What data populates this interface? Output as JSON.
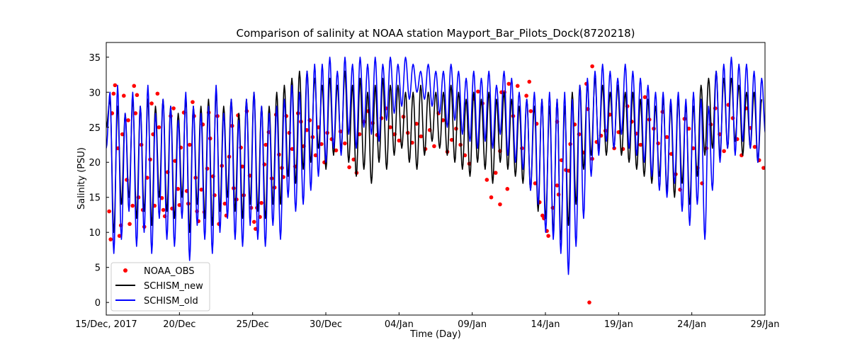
{
  "chart_data": {
    "type": "line",
    "title": "Comparison of salinity at NOAA station Mayport_Bar_Pilots_Dock(8720218)",
    "xlabel": "Time (Day)",
    "ylabel": "Salinity (PSU)",
    "xlim_days": [
      0,
      45
    ],
    "ylim": [
      -1.8,
      37.1
    ],
    "x_ticks": [
      {
        "day": 0,
        "label": "15/Dec, 2017"
      },
      {
        "day": 5,
        "label": "20/Dec"
      },
      {
        "day": 10,
        "label": "25/Dec"
      },
      {
        "day": 15,
        "label": "30/Dec"
      },
      {
        "day": 20,
        "label": "04/Jan"
      },
      {
        "day": 25,
        "label": "09/Jan"
      },
      {
        "day": 30,
        "label": "14/Jan"
      },
      {
        "day": 35,
        "label": "19/Jan"
      },
      {
        "day": 40,
        "label": "24/Jan"
      },
      {
        "day": 45,
        "label": "29/Jan"
      }
    ],
    "y_ticks": [
      0,
      5,
      10,
      15,
      20,
      25,
      30,
      35
    ],
    "grid": false,
    "legend": {
      "placement": "lower-left",
      "entries": [
        {
          "label": "NOAA_OBS",
          "marker": "dot",
          "color": "#ff0000"
        },
        {
          "label": "SCHISM_new",
          "marker": "line",
          "color": "#000000"
        },
        {
          "label": "SCHISM_old",
          "marker": "line",
          "color": "#0000ff"
        }
      ]
    },
    "series": [
      {
        "name": "SCHISM_old",
        "color": "#0000ff",
        "x_step_days": 0.2588,
        "extremes": [
          22,
          30,
          7,
          31,
          9,
          27,
          13,
          30,
          8,
          28,
          10,
          31,
          7,
          27,
          12,
          29,
          9,
          28,
          8,
          26,
          12,
          30,
          6,
          28,
          11,
          27,
          9,
          28,
          7,
          31,
          10,
          27,
          12,
          29,
          9,
          26,
          8,
          29,
          11,
          30,
          9,
          28,
          8,
          27,
          11,
          28,
          9,
          29,
          15,
          31,
          13,
          30,
          14,
          33,
          16,
          34,
          18,
          34,
          20,
          35,
          22,
          33,
          21,
          35,
          24,
          34,
          22,
          35,
          25,
          34,
          24,
          35,
          23,
          34,
          26,
          35,
          27,
          34,
          28,
          35,
          29,
          34,
          30,
          33,
          29,
          34,
          28,
          33,
          27,
          33,
          25,
          34,
          26,
          33,
          24,
          32,
          23,
          33,
          22,
          32,
          23,
          33,
          22,
          31,
          24,
          33,
          21,
          32,
          20,
          30,
          19,
          29,
          16,
          30,
          14,
          29,
          10,
          30,
          9,
          29,
          7,
          30,
          4,
          29,
          8,
          31,
          12,
          32,
          18,
          33,
          21,
          34,
          23,
          33,
          22,
          32,
          24,
          34,
          22,
          33,
          21,
          32,
          20,
          31,
          18,
          30,
          16,
          30,
          15,
          29,
          17,
          30,
          13,
          29,
          11,
          30,
          14,
          29,
          9,
          28,
          16,
          33,
          20,
          34,
          22,
          35,
          21,
          34,
          23,
          34,
          22,
          33,
          20,
          32,
          24,
          31,
          21,
          30
        ]
      },
      {
        "name": "SCHISM_new",
        "color": "#000000",
        "x_step_days": 0.2588,
        "extremes": [
          25,
          29,
          10,
          28,
          14,
          27,
          15,
          29,
          12,
          28,
          13,
          29,
          11,
          28,
          15,
          29,
          13,
          28,
          12,
          27,
          15,
          29,
          10,
          28,
          14,
          28,
          12,
          29,
          11,
          30,
          13,
          28,
          15,
          29,
          13,
          27,
          12,
          29,
          14,
          30,
          13,
          28,
          12,
          28,
          14,
          30,
          14,
          31,
          18,
          32,
          17,
          33,
          19,
          33,
          20,
          32,
          22,
          31,
          19,
          32,
          21,
          31,
          22,
          33,
          20,
          31,
          18,
          32,
          19,
          30,
          17,
          31,
          20,
          32,
          19,
          31,
          21,
          31,
          22,
          30,
          20,
          30,
          19,
          31,
          21,
          30,
          23,
          30,
          22,
          30,
          21,
          31,
          20,
          30,
          19,
          29,
          18,
          30,
          20,
          29,
          19,
          30,
          17,
          29,
          20,
          30,
          19,
          29,
          18,
          28,
          17,
          29,
          16,
          28,
          13,
          29,
          12,
          28,
          10,
          29,
          9,
          28,
          11,
          30,
          14,
          31,
          19,
          31,
          21,
          32,
          22,
          31,
          21,
          30,
          22,
          31,
          21,
          30,
          20,
          30,
          19,
          29,
          18,
          29,
          17,
          28,
          18,
          29,
          16,
          28,
          15,
          29,
          17,
          28,
          14,
          28,
          18,
          31,
          21,
          32,
          22,
          33,
          21,
          32,
          22,
          32,
          23,
          31,
          21,
          30,
          22,
          30,
          20,
          29
        ]
      }
    ],
    "observations": {
      "name": "NOAA_OBS",
      "color": "#ff0000",
      "points": [
        [
          0.2,
          13
        ],
        [
          0.3,
          9
        ],
        [
          0.4,
          27
        ],
        [
          0.5,
          29.8
        ],
        [
          0.6,
          31
        ],
        [
          0.8,
          22
        ],
        [
          0.9,
          9.5
        ],
        [
          1.0,
          11
        ],
        [
          1.1,
          24
        ],
        [
          1.2,
          29.5
        ],
        [
          1.4,
          17.5
        ],
        [
          1.5,
          26
        ],
        [
          1.6,
          11.2
        ],
        [
          1.8,
          13.8
        ],
        [
          1.9,
          30.9
        ],
        [
          2.0,
          27
        ],
        [
          2.1,
          29.6
        ],
        [
          2.2,
          15
        ],
        [
          2.4,
          22.5
        ],
        [
          2.5,
          13.2
        ],
        [
          2.6,
          10.8
        ],
        [
          2.8,
          17.8
        ],
        [
          3.0,
          20.4
        ],
        [
          3.1,
          28.4
        ],
        [
          3.2,
          24
        ],
        [
          3.3,
          13.8
        ],
        [
          3.5,
          29.8
        ],
        [
          3.6,
          25
        ],
        [
          3.8,
          14.9
        ],
        [
          3.9,
          13.2
        ],
        [
          4.0,
          12.3
        ],
        [
          4.2,
          18.6
        ],
        [
          4.4,
          26.6
        ],
        [
          4.5,
          13.4
        ],
        [
          4.6,
          27.7
        ],
        [
          4.7,
          20.2
        ],
        [
          4.9,
          16.2
        ],
        [
          5.0,
          13.9
        ],
        [
          5.1,
          22.1
        ],
        [
          5.3,
          27.1
        ],
        [
          5.5,
          15.9
        ],
        [
          5.6,
          14.1
        ],
        [
          5.7,
          22.5
        ],
        [
          5.9,
          28.6
        ],
        [
          6.0,
          26.6
        ],
        [
          6.1,
          17.8
        ],
        [
          6.2,
          13
        ],
        [
          6.3,
          11.6
        ],
        [
          6.5,
          16.1
        ],
        [
          6.6,
          25.4
        ],
        [
          6.7,
          12.9
        ],
        [
          6.9,
          19.1
        ],
        [
          7.0,
          27.1
        ],
        [
          7.1,
          23.4
        ],
        [
          7.3,
          18
        ],
        [
          7.4,
          15.3
        ],
        [
          7.6,
          26.6
        ],
        [
          7.7,
          11.2
        ],
        [
          7.9,
          19.5
        ],
        [
          8.1,
          14.1
        ],
        [
          8.2,
          12.4
        ],
        [
          8.4,
          20.8
        ],
        [
          8.6,
          25.2
        ],
        [
          8.7,
          16.3
        ],
        [
          8.9,
          14.7
        ],
        [
          9.0,
          26.7
        ],
        [
          9.2,
          22.1
        ],
        [
          9.3,
          19.4
        ],
        [
          9.4,
          15.3
        ],
        [
          9.6,
          27.3
        ],
        [
          9.8,
          18.1
        ],
        [
          9.9,
          13.5
        ],
        [
          10.1,
          11.5
        ],
        [
          10.2,
          10.5
        ],
        [
          10.3,
          13.5
        ],
        [
          10.5,
          12.2
        ],
        [
          10.6,
          14.2
        ],
        [
          10.8,
          19.7
        ],
        [
          10.9,
          22.5
        ],
        [
          11.1,
          24.3
        ],
        [
          11.3,
          17.7
        ],
        [
          11.5,
          16.4
        ],
        [
          11.6,
          26.8
        ],
        [
          11.8,
          21.1
        ],
        [
          12.0,
          19.2
        ],
        [
          12.1,
          17.9
        ],
        [
          12.3,
          26.6
        ],
        [
          12.5,
          24.2
        ],
        [
          12.7,
          21.9
        ],
        [
          12.9,
          19.4
        ],
        [
          13.1,
          27.0
        ],
        [
          13.3,
          25.8
        ],
        [
          13.5,
          22.3
        ],
        [
          13.7,
          24.6
        ],
        [
          13.9,
          26.0
        ],
        [
          14.1,
          23.6
        ],
        [
          14.3,
          21.0
        ],
        [
          14.5,
          25.0
        ],
        [
          14.7,
          22.6
        ],
        [
          14.9,
          20.0
        ],
        [
          15.1,
          24.2
        ],
        [
          15.4,
          23.3
        ],
        [
          15.7,
          21.7
        ],
        [
          16.0,
          24.4
        ],
        [
          16.3,
          22.7
        ],
        [
          16.6,
          19.3
        ],
        [
          16.9,
          20.4
        ],
        [
          17.1,
          18.5
        ],
        [
          17.3,
          24.0
        ],
        [
          17.6,
          25.8
        ],
        [
          17.9,
          27.3
        ],
        [
          18.2,
          25.6
        ],
        [
          18.5,
          23.9
        ],
        [
          18.8,
          26.3
        ],
        [
          19.1,
          27.7
        ],
        [
          19.4,
          25.0
        ],
        [
          19.7,
          24.0
        ],
        [
          20.0,
          23.1
        ],
        [
          20.3,
          26.5
        ],
        [
          20.6,
          24.2
        ],
        [
          20.9,
          22.8
        ],
        [
          21.2,
          25.5
        ],
        [
          21.5,
          23.7
        ],
        [
          21.8,
          21.9
        ],
        [
          22.1,
          24.6
        ],
        [
          22.4,
          22.3
        ],
        [
          22.7,
          27.0
        ],
        [
          23.0,
          26.0
        ],
        [
          23.3,
          21.5
        ],
        [
          23.6,
          23.2
        ],
        [
          23.9,
          24.8
        ],
        [
          24.2,
          22.5
        ],
        [
          24.5,
          21.0
        ],
        [
          24.8,
          19.8
        ],
        [
          25.1,
          29.1
        ],
        [
          25.4,
          30.1
        ],
        [
          25.7,
          28.4
        ],
        [
          26.0,
          17.5
        ],
        [
          26.3,
          15.0
        ],
        [
          26.6,
          18.5
        ],
        [
          26.9,
          21.6
        ],
        [
          27.2,
          30.0
        ],
        [
          27.5,
          31.2
        ],
        [
          27.8,
          26.6
        ],
        [
          28.1,
          30.9
        ],
        [
          28.4,
          22.0
        ],
        [
          28.7,
          29.5
        ],
        [
          29.0,
          27.3
        ],
        [
          29.3,
          17.0
        ],
        [
          29.6,
          14.3
        ],
        [
          29.9,
          12.0
        ],
        [
          30.2,
          9.5
        ],
        [
          30.5,
          13.5
        ],
        [
          30.8,
          16.7
        ],
        [
          31.1,
          20.3
        ],
        [
          31.4,
          18.9
        ],
        [
          31.7,
          22.6
        ],
        [
          32.0,
          25.4
        ],
        [
          32.3,
          24.0
        ],
        [
          32.6,
          21.4
        ],
        [
          32.9,
          27.6
        ],
        [
          33.2,
          20.5
        ],
        [
          33.5,
          22.9
        ],
        [
          33.8,
          23.8
        ],
        [
          34.1,
          24.5
        ],
        [
          34.4,
          26.8
        ],
        [
          34.7,
          22.0
        ],
        [
          35.0,
          24.3
        ],
        [
          35.3,
          21.9
        ],
        [
          35.6,
          28.0
        ],
        [
          35.9,
          25.8
        ],
        [
          36.2,
          24.1
        ],
        [
          36.5,
          22.5
        ],
        [
          36.8,
          29.3
        ],
        [
          37.1,
          26.1
        ],
        [
          37.4,
          24.8
        ],
        [
          37.7,
          22.7
        ],
        [
          38.0,
          27.2
        ],
        [
          38.3,
          23.6
        ],
        [
          38.6,
          21.2
        ],
        [
          38.9,
          18.3
        ],
        [
          39.2,
          16.1
        ],
        [
          39.5,
          26.2
        ],
        [
          39.8,
          24.8
        ],
        [
          40.1,
          22.0
        ],
        [
          40.4,
          19.2
        ],
        [
          40.7,
          17.0
        ],
        [
          41.0,
          22.0
        ],
        [
          41.3,
          25.4
        ],
        [
          41.6,
          27.7
        ],
        [
          41.9,
          24.0
        ],
        [
          42.2,
          21.6
        ],
        [
          42.5,
          28.2
        ],
        [
          42.8,
          26.3
        ],
        [
          43.1,
          23.3
        ],
        [
          43.4,
          21.0
        ],
        [
          43.7,
          27.7
        ],
        [
          44.0,
          24.9
        ],
        [
          44.3,
          22.2
        ],
        [
          44.6,
          20.3
        ],
        [
          44.9,
          19.2
        ],
        [
          33.0,
          0.0
        ],
        [
          33.2,
          33.7
        ],
        [
          32.8,
          31.2
        ],
        [
          29.4,
          25.5
        ],
        [
          28.9,
          31.5
        ],
        [
          27.0,
          30.0
        ],
        [
          30.8,
          25.8
        ],
        [
          31.6,
          18.8
        ],
        [
          30.9,
          15.4
        ],
        [
          30.1,
          10.2
        ],
        [
          29.8,
          12.4
        ],
        [
          27.4,
          16.2
        ],
        [
          26.9,
          14.0
        ]
      ]
    }
  }
}
